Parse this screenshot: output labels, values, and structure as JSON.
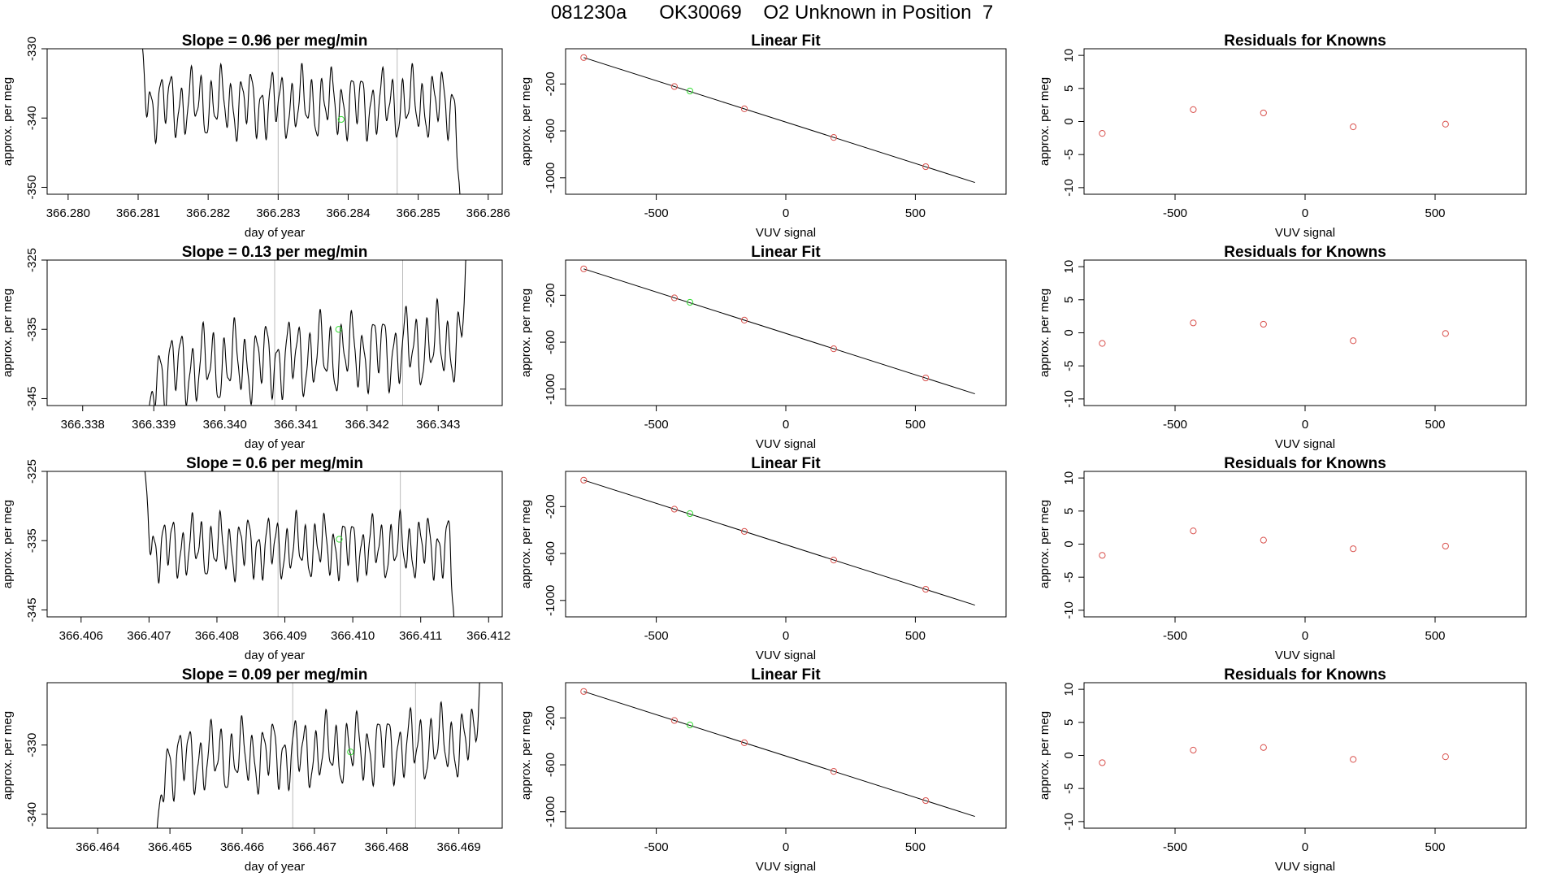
{
  "title": "081230a      OK30069    O2 Unknown in Position  7",
  "colors": {
    "line": "#000000",
    "known": "#d9534f",
    "unknown": "#33dd33",
    "vline": "#bbbbbb",
    "axis": "#000000"
  },
  "chart_data": [
    {
      "type": "line",
      "title": "Slope =  0.96  per meg/min",
      "xlabel": "day of year",
      "ylabel": "approx. per meg",
      "xlim": [
        366.2797,
        366.2862
      ],
      "ylim": [
        -351,
        -330
      ],
      "xticks": [
        "366.280",
        "366.281",
        "366.282",
        "366.283",
        "366.284",
        "366.285",
        "366.286"
      ],
      "yticks": [
        -330,
        -340,
        -350
      ],
      "series": {
        "x_start": 366.281,
        "x_end": 366.2856,
        "baseline": -338,
        "amp": 3.5,
        "cycles": 32,
        "trend": 0,
        "start_level": -325,
        "end_level": -352
      },
      "vlines": [
        366.283,
        366.2847
      ],
      "unknown_point": {
        "x": 366.2839,
        "y": -340.2
      }
    },
    {
      "type": "scatter",
      "title": "Linear Fit",
      "xlabel": "VUV signal",
      "ylabel": "approx. per meg",
      "xlim": [
        -850,
        850
      ],
      "ylim": [
        -1140,
        100
      ],
      "xticks": [
        -500,
        0,
        500
      ],
      "yticks": [
        -200,
        -600,
        -1000
      ],
      "fit_line": {
        "x": [
          -780,
          730
        ],
        "y": [
          25,
          -1040
        ]
      },
      "knowns": {
        "x": [
          -780,
          -430,
          -160,
          185,
          540
        ],
        "y": [
          25,
          -222,
          -412,
          -656,
          -905
        ]
      },
      "unknown": {
        "x": -370,
        "y": -260
      }
    },
    {
      "type": "scatter",
      "title": "Residuals for Knowns",
      "xlabel": "VUV signal",
      "ylabel": "approx. per meg",
      "xlim": [
        -850,
        850
      ],
      "ylim": [
        -11,
        11
      ],
      "xticks": [
        -500,
        0,
        500
      ],
      "yticks": [
        10,
        5,
        0,
        -5,
        -10
      ],
      "points": {
        "x": [
          -780,
          -430,
          -160,
          185,
          540
        ],
        "y": [
          -1.8,
          1.8,
          1.3,
          -0.8,
          -0.4
        ]
      }
    },
    {
      "type": "line",
      "title": "Slope =  0.13  per meg/min",
      "xlabel": "day of year",
      "ylabel": "approx. per meg",
      "xlim": [
        366.3375,
        366.3439
      ],
      "ylim": [
        -346,
        -325
      ],
      "xticks": [
        "366.338",
        "366.339",
        "366.340",
        "366.341",
        "366.342",
        "366.343"
      ],
      "yticks": [
        -325,
        -335,
        -345
      ],
      "series": {
        "x_start": 366.3389,
        "x_end": 366.3434,
        "baseline": -339,
        "amp": 4,
        "cycles": 30,
        "trend": 4,
        "start_level": -350,
        "end_level": -322
      },
      "vlines": [
        366.3407,
        366.3425
      ],
      "unknown_point": {
        "x": 366.3416,
        "y": -335
      }
    },
    {
      "type": "scatter",
      "title": "Linear Fit",
      "xlabel": "VUV signal",
      "ylabel": "approx. per meg",
      "xlim": [
        -850,
        850
      ],
      "ylim": [
        -1140,
        100
      ],
      "xticks": [
        -500,
        0,
        500
      ],
      "yticks": [
        -200,
        -600,
        -1000
      ],
      "fit_line": {
        "x": [
          -780,
          730
        ],
        "y": [
          25,
          -1040
        ]
      },
      "knowns": {
        "x": [
          -780,
          -430,
          -160,
          185,
          540
        ],
        "y": [
          25,
          -222,
          -412,
          -656,
          -905
        ]
      },
      "unknown": {
        "x": -370,
        "y": -260
      }
    },
    {
      "type": "scatter",
      "title": "Residuals for Knowns",
      "xlabel": "VUV signal",
      "ylabel": "approx. per meg",
      "xlim": [
        -850,
        850
      ],
      "ylim": [
        -11,
        11
      ],
      "xticks": [
        -500,
        0,
        500
      ],
      "yticks": [
        10,
        5,
        0,
        -5,
        -10
      ],
      "points": {
        "x": [
          -780,
          -430,
          -160,
          185,
          540
        ],
        "y": [
          -1.6,
          1.5,
          1.3,
          -1.2,
          -0.1
        ]
      }
    },
    {
      "type": "line",
      "title": "Slope =  0.6  per meg/min",
      "xlabel": "day of year",
      "ylabel": "approx. per meg",
      "xlim": [
        366.4055,
        366.4122
      ],
      "ylim": [
        -346,
        -325
      ],
      "xticks": [
        "366.406",
        "366.407",
        "366.408",
        "366.409",
        "366.410",
        "366.411",
        "366.412"
      ],
      "yticks": [
        -325,
        -335,
        -345
      ],
      "series": {
        "x_start": 366.4069,
        "x_end": 366.4115,
        "baseline": -336,
        "amp": 3.2,
        "cycles": 33,
        "trend": 0,
        "start_level": -322,
        "end_level": -348
      },
      "vlines": [
        366.4089,
        366.4107
      ],
      "unknown_point": {
        "x": 366.4098,
        "y": -334.8
      }
    },
    {
      "type": "scatter",
      "title": "Linear Fit",
      "xlabel": "VUV signal",
      "ylabel": "approx. per meg",
      "xlim": [
        -850,
        850
      ],
      "ylim": [
        -1140,
        100
      ],
      "xticks": [
        -500,
        0,
        500
      ],
      "yticks": [
        -200,
        -600,
        -1000
      ],
      "fit_line": {
        "x": [
          -780,
          730
        ],
        "y": [
          25,
          -1040
        ]
      },
      "knowns": {
        "x": [
          -780,
          -430,
          -160,
          185,
          540
        ],
        "y": [
          25,
          -222,
          -412,
          -656,
          -905
        ]
      },
      "unknown": {
        "x": -370,
        "y": -260
      }
    },
    {
      "type": "scatter",
      "title": "Residuals for Knowns",
      "xlabel": "VUV signal",
      "ylabel": "approx. per meg",
      "xlim": [
        -850,
        850
      ],
      "ylim": [
        -11,
        11
      ],
      "xticks": [
        -500,
        0,
        500
      ],
      "yticks": [
        10,
        5,
        0,
        -5,
        -10
      ],
      "points": {
        "x": [
          -780,
          -430,
          -160,
          185,
          540
        ],
        "y": [
          -1.7,
          2.0,
          0.6,
          -0.7,
          -0.3
        ]
      }
    },
    {
      "type": "line",
      "title": "Slope =  0.09  per meg/min",
      "xlabel": "day of year",
      "ylabel": "approx. per meg",
      "xlim": [
        366.4633,
        366.4696
      ],
      "ylim": [
        -342,
        -321
      ],
      "xticks": [
        "366.464",
        "366.465",
        "366.466",
        "366.467",
        "366.468",
        "366.469"
      ],
      "yticks": [
        -330,
        -340
      ],
      "series": {
        "x_start": 366.4648,
        "x_end": 366.4693,
        "baseline": -331,
        "amp": 3.6,
        "cycles": 31,
        "trend": 3,
        "start_level": -345,
        "end_level": -318
      },
      "vlines": [
        366.4667,
        366.4684
      ],
      "unknown_point": {
        "x": 366.4675,
        "y": -331
      }
    },
    {
      "type": "scatter",
      "title": "Linear Fit",
      "xlabel": "VUV signal",
      "ylabel": "approx. per meg",
      "xlim": [
        -850,
        850
      ],
      "ylim": [
        -1140,
        100
      ],
      "xticks": [
        -500,
        0,
        500
      ],
      "yticks": [
        -200,
        -600,
        -1000
      ],
      "fit_line": {
        "x": [
          -780,
          730
        ],
        "y": [
          25,
          -1040
        ]
      },
      "knowns": {
        "x": [
          -780,
          -430,
          -160,
          185,
          540
        ],
        "y": [
          25,
          -222,
          -412,
          -656,
          -905
        ]
      },
      "unknown": {
        "x": -370,
        "y": -260
      }
    },
    {
      "type": "scatter",
      "title": "Residuals for Knowns",
      "xlabel": "VUV signal",
      "ylabel": "approx. per meg",
      "xlim": [
        -850,
        850
      ],
      "ylim": [
        -11,
        11
      ],
      "xticks": [
        -500,
        0,
        500
      ],
      "yticks": [
        10,
        5,
        0,
        -5,
        -10
      ],
      "points": {
        "x": [
          -780,
          -430,
          -160,
          185,
          540
        ],
        "y": [
          -1.1,
          0.8,
          1.2,
          -0.6,
          -0.2
        ]
      }
    }
  ]
}
